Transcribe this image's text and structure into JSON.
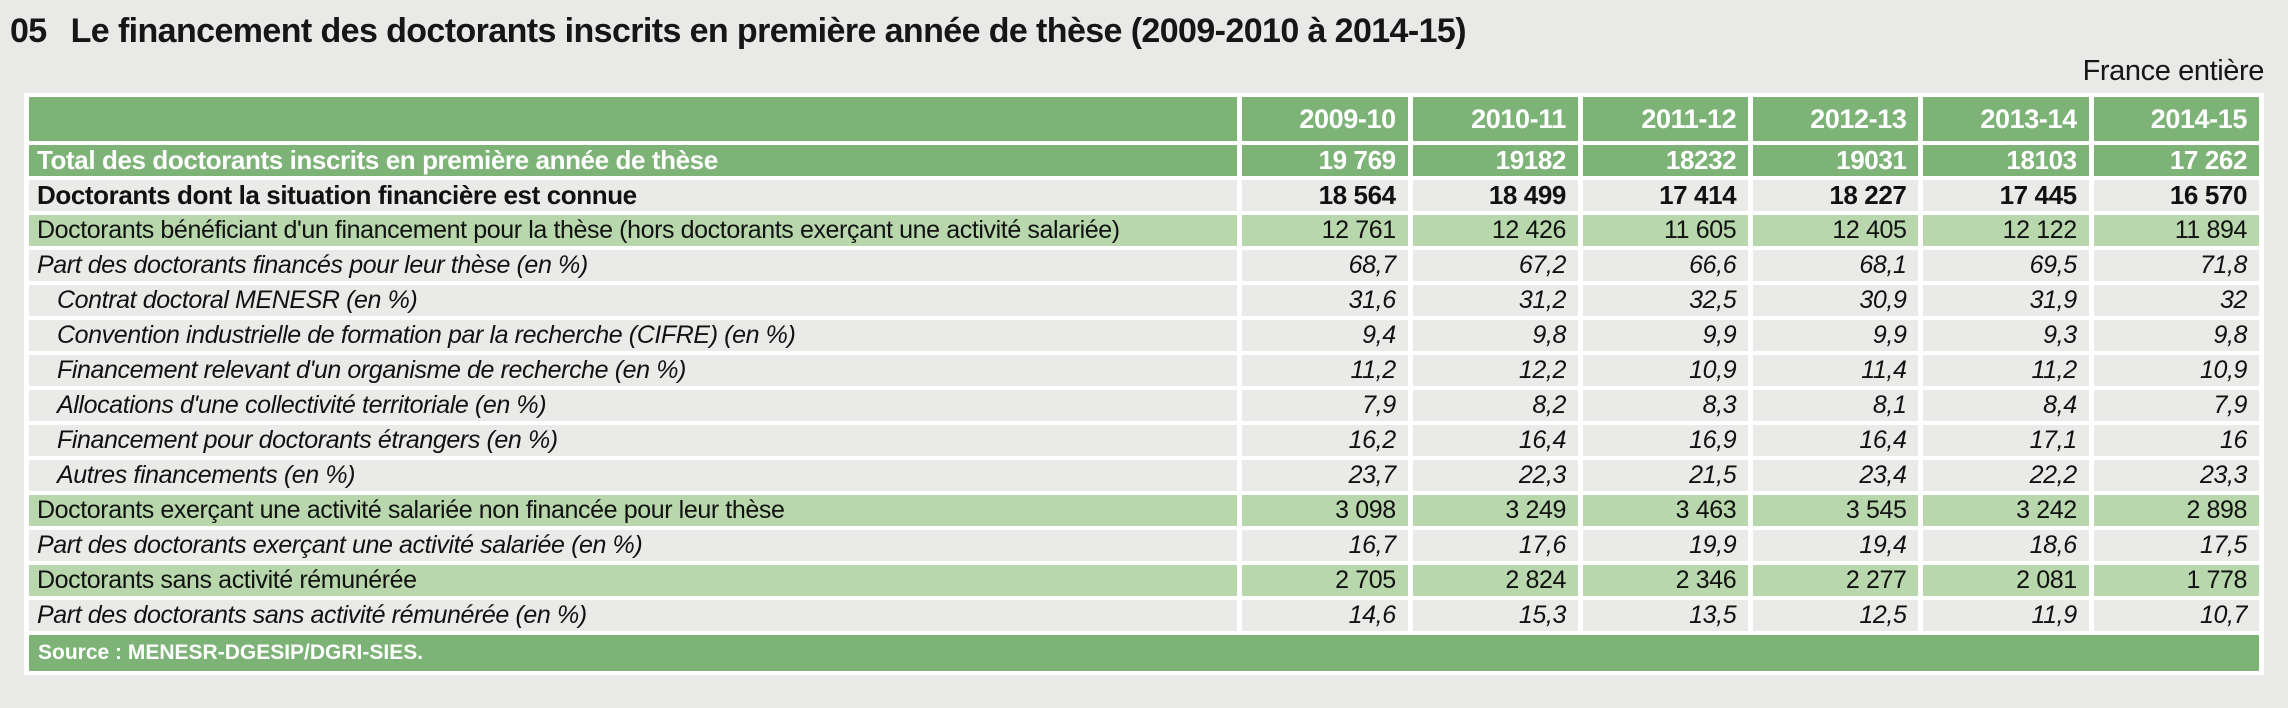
{
  "page": {
    "figure_number": "05",
    "title": "Le financement des doctorants inscrits en première année de thèse (2009-2010 à 2014-15)",
    "region_label": "France entière",
    "source": "Source : MENESR-DGESIP/DGRI-SIES."
  },
  "colors": {
    "dark_green": "#7db377",
    "light_green": "#b8d7ac",
    "row_gray": "#eaeae8",
    "page_bg": "#e9e9e8",
    "header_text": "#ffffff",
    "body_text": "#111111"
  },
  "chart_data": {
    "type": "table",
    "title": "Le financement des doctorants inscrits en première année de thèse (2009-2010 à 2014-15)",
    "scope": "France entière",
    "columns": [
      "2009-10",
      "2010-11",
      "2011-12",
      "2012-13",
      "2013-14",
      "2014-15"
    ],
    "rows": [
      {
        "label": "Total des doctorants inscrits en première année de thèse",
        "style": "total",
        "values": [
          "19 769",
          "19182",
          "18232",
          "19031",
          "18103",
          "17 262"
        ]
      },
      {
        "label": "Doctorants dont la situation financière est connue",
        "style": "bold",
        "values": [
          "18 564",
          "18 499",
          "17 414",
          "18 227",
          "17 445",
          "16 570"
        ]
      },
      {
        "label": "Doctorants bénéficiant d'un financement pour la thèse (hors doctorants exerçant une activité salariée)",
        "style": "green",
        "values": [
          "12 761",
          "12 426",
          "11 605",
          "12 405",
          "12 122",
          "11 894"
        ]
      },
      {
        "label": "Part des doctorants financés pour leur thèse (en %)",
        "style": "italic",
        "values": [
          "68,7",
          "67,2",
          "66,6",
          "68,1",
          "69,5",
          "71,8"
        ]
      },
      {
        "label": "Contrat doctoral MENESR (en %)",
        "style": "italic_sub",
        "values": [
          "31,6",
          "31,2",
          "32,5",
          "30,9",
          "31,9",
          "32"
        ]
      },
      {
        "label": "Convention industrielle de formation par la recherche (CIFRE)  (en %)",
        "style": "italic_sub",
        "values": [
          "9,4",
          "9,8",
          "9,9",
          "9,9",
          "9,3",
          "9,8"
        ]
      },
      {
        "label": "Financement relevant d'un organisme de recherche  (en %)",
        "style": "italic_sub",
        "values": [
          "11,2",
          "12,2",
          "10,9",
          "11,4",
          "11,2",
          "10,9"
        ]
      },
      {
        "label": "Allocations d'une collectivité territoriale  (en %)",
        "style": "italic_sub",
        "values": [
          "7,9",
          "8,2",
          "8,3",
          "8,1",
          "8,4",
          "7,9"
        ]
      },
      {
        "label": "Financement pour doctorants étrangers  (en %)",
        "style": "italic_sub",
        "values": [
          "16,2",
          "16,4",
          "16,9",
          "16,4",
          "17,1",
          "16"
        ]
      },
      {
        "label": "Autres financements  (en %)",
        "style": "italic_sub",
        "values": [
          "23,7",
          "22,3",
          "21,5",
          "23,4",
          "22,2",
          "23,3"
        ]
      },
      {
        "label": "Doctorants exerçant une activité salariée non financée pour leur thèse",
        "style": "green",
        "values": [
          "3 098",
          "3 249",
          "3 463",
          "3 545",
          "3 242",
          "2 898"
        ]
      },
      {
        "label": "Part des doctorants exerçant une activité salariée (en %)",
        "style": "italic",
        "values": [
          "16,7",
          "17,6",
          "19,9",
          "19,4",
          "18,6",
          "17,5"
        ]
      },
      {
        "label": "Doctorants sans activité rémunérée",
        "style": "green",
        "values": [
          "2 705",
          "2 824",
          "2 346",
          "2 277",
          "2 081",
          "1 778"
        ]
      },
      {
        "label": "Part des doctorants sans activité rémunérée (en %)",
        "style": "italic",
        "values": [
          "14,6",
          "15,3",
          "13,5",
          "12,5",
          "11,9",
          "10,7"
        ]
      }
    ]
  }
}
